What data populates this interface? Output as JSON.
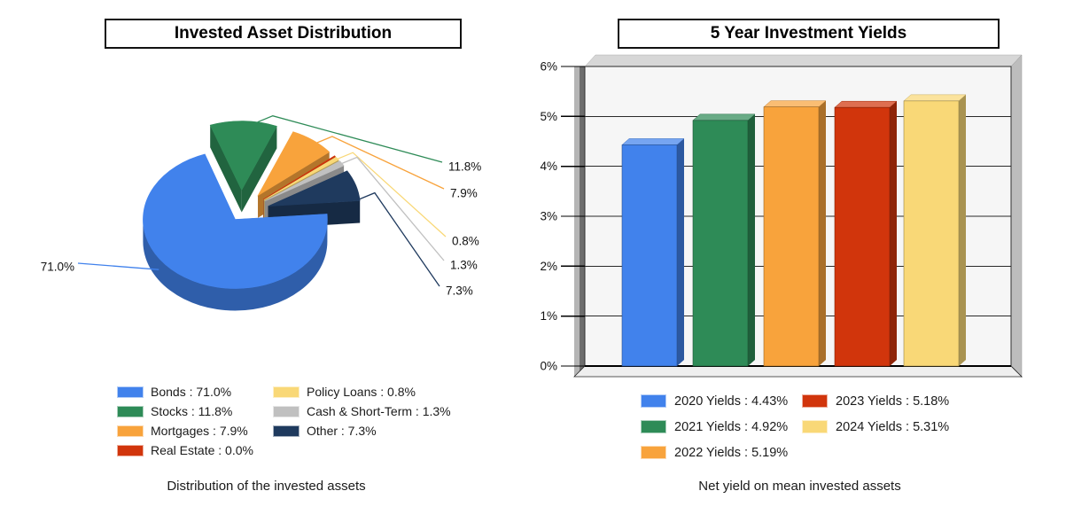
{
  "page": {
    "background": "#ffffff"
  },
  "chart_data": [
    {
      "type": "pie",
      "title": "Invested Asset Distribution",
      "caption": "Distribution of the invested assets",
      "legend_position": "bottom",
      "style": "3d-exploded",
      "slices": [
        {
          "label": "Bonds",
          "value": 71.0,
          "color": "#4182EC",
          "callout": "71.0%"
        },
        {
          "label": "Stocks",
          "value": 11.8,
          "color": "#2E8B57",
          "callout": "11.8%"
        },
        {
          "label": "Mortgages",
          "value": 7.9,
          "color": "#F8A33C",
          "callout": "7.9%"
        },
        {
          "label": "Real Estate",
          "value": 0.0,
          "color": "#D1350C",
          "callout": null
        },
        {
          "label": "Policy Loans",
          "value": 0.8,
          "color": "#F9D877",
          "callout": "0.8%"
        },
        {
          "label": "Cash & Short-Term",
          "value": 1.3,
          "color": "#C0C0C0",
          "callout": "1.3%"
        },
        {
          "label": "Other",
          "value": 7.3,
          "color": "#1F3A5E",
          "callout": "7.3%"
        }
      ]
    },
    {
      "type": "bar",
      "title": "5 Year Investment Yields",
      "caption": "Net yield on mean invested assets",
      "legend_position": "bottom",
      "style": "3d",
      "categories": [
        "2020 Yields",
        "2021 Yields",
        "2022 Yields",
        "2023 Yields",
        "2024 Yields"
      ],
      "values": [
        4.43,
        4.92,
        5.19,
        5.18,
        5.31
      ],
      "colors": [
        "#4182EC",
        "#2E8B57",
        "#F8A33C",
        "#D1350C",
        "#F9D877"
      ],
      "xlabel": "",
      "ylabel": "",
      "ylim": [
        0,
        6
      ],
      "yticks": [
        "0%",
        "1%",
        "2%",
        "3%",
        "4%",
        "5%",
        "6%"
      ],
      "grid": true
    }
  ]
}
